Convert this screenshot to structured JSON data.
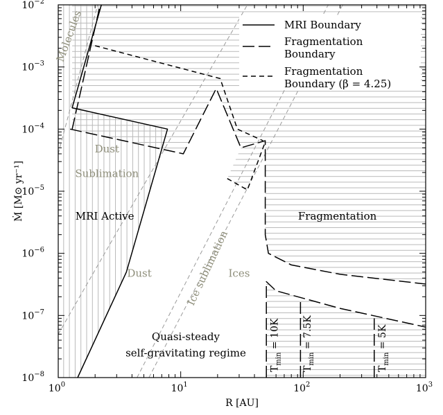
{
  "chart_data": {
    "type": "line",
    "xscale": "log",
    "yscale": "log",
    "xlim": [
      1,
      1000
    ],
    "ylim": [
      1e-08,
      0.01
    ],
    "xlabel": "R [AU]",
    "ylabel": "Ṁ [M⊙ yr⁻¹]",
    "x_ticks": [
      {
        "value": 1,
        "base": "10",
        "exp": "0"
      },
      {
        "value": 10,
        "base": "10",
        "exp": "1"
      },
      {
        "value": 100,
        "base": "10",
        "exp": "2"
      },
      {
        "value": 1000,
        "base": "10",
        "exp": "3"
      }
    ],
    "y_ticks": [
      {
        "value": 1e-08,
        "base": "10",
        "exp": "−8"
      },
      {
        "value": 1e-07,
        "base": "10",
        "exp": "−7"
      },
      {
        "value": 1e-06,
        "base": "10",
        "exp": "−6"
      },
      {
        "value": 1e-05,
        "base": "10",
        "exp": "−5"
      },
      {
        "value": 0.0001,
        "base": "10",
        "exp": "−4"
      },
      {
        "value": 0.001,
        "base": "10",
        "exp": "−3"
      },
      {
        "value": 0.01,
        "base": "10",
        "exp": "−2"
      }
    ],
    "legend": {
      "placement": "top-right",
      "entries": [
        {
          "label_lines": [
            "MRI Boundary"
          ],
          "style": "solid"
        },
        {
          "label_lines": [
            "Fragmentation",
            "Boundary"
          ],
          "style": "long-dash"
        },
        {
          "label_lines": [
            "Fragmentation",
            "Boundary (β = 4.25)"
          ],
          "style": "short-dash"
        }
      ]
    },
    "series": [
      {
        "name": "MRI Boundary",
        "style": "solid",
        "segments": [
          [
            [
              1.44,
              1e-08
            ],
            [
              3.6,
              5e-07
            ],
            [
              7.8,
              0.0001
            ],
            [
              1.3,
              0.00022
            ],
            [
              2.25,
              0.01
            ]
          ]
        ]
      },
      {
        "name": "Fragmentation Boundary",
        "style": "long-dash",
        "segments": [
          [
            [
              1.25,
              0.0001
            ],
            [
              10.5,
              4e-05
            ],
            [
              19.5,
              0.00045
            ],
            [
              31,
              5e-05
            ],
            [
              49,
              6.5e-05
            ],
            [
              49,
              2e-06
            ],
            [
              52,
              1e-06
            ],
            [
              80,
              6.5e-07
            ],
            [
              200,
              4.6e-07
            ],
            [
              1000,
              3.2e-07
            ]
          ],
          [
            [
              1.3,
              0.0001
            ],
            [
              2.2,
              0.01
            ]
          ],
          [
            [
              50,
              1e-08
            ],
            [
              50,
              3.5e-07
            ],
            [
              60,
              2.5e-07
            ],
            [
              200,
              1.3e-07
            ],
            [
              1000,
              6.5e-08
            ]
          ],
          [
            [
              95,
              1e-08
            ],
            [
              95,
              1.65e-07
            ]
          ],
          [
            [
              380,
              1e-08
            ],
            [
              380,
              9e-08
            ]
          ]
        ]
      },
      {
        "name": "Fragmentation Boundary (β = 4.25)",
        "style": "short-dash",
        "segments": [
          [
            [
              2.0,
              0.0022
            ],
            [
              21,
              0.00065
            ],
            [
              29,
              0.0001
            ],
            [
              47,
              6.5e-05
            ]
          ],
          [
            [
              24,
              1.6e-05
            ],
            [
              35,
              1.05e-05
            ],
            [
              49,
              6.2e-05
            ]
          ]
        ]
      }
    ],
    "guide_lines": {
      "style": "thin-dashed-gray",
      "lines": [
        [
          [
            1,
            4e-05
          ],
          [
            2.1,
            0.01
          ]
        ],
        [
          [
            1,
            5e-08
          ],
          [
            35,
            0.01
          ]
        ],
        [
          [
            4.4,
            1e-08
          ],
          [
            160,
            0.01
          ]
        ],
        [
          [
            5.5,
            1e-08
          ],
          [
            210,
            0.01
          ]
        ]
      ]
    },
    "shading": {
      "horizontal_hatch": [
        [
          [
            1.3,
            0.01
          ],
          [
            1000,
            0.01
          ],
          [
            1000,
            3.2e-07
          ],
          [
            200,
            4.6e-07
          ],
          [
            80,
            6.5e-07
          ],
          [
            52,
            1e-06
          ],
          [
            49,
            2e-06
          ],
          [
            49,
            6.5e-05
          ],
          [
            31,
            5e-05
          ],
          [
            19.5,
            0.00045
          ],
          [
            10.5,
            4e-05
          ],
          [
            1.3,
            0.0001
          ]
        ],
        [
          [
            50,
            1e-08
          ],
          [
            50,
            3.5e-07
          ],
          [
            60,
            2.5e-07
          ],
          [
            200,
            1.3e-07
          ],
          [
            1000,
            6.5e-08
          ],
          [
            1000,
            1e-08
          ]
        ],
        [
          [
            24,
            1.6e-05
          ],
          [
            35,
            1.05e-05
          ],
          [
            49,
            6.2e-05
          ],
          [
            31,
            5e-05
          ]
        ]
      ],
      "vertical_hatch": [
        [
          [
            1,
            1e-08
          ],
          [
            1.44,
            1e-08
          ],
          [
            3.6,
            5e-07
          ],
          [
            7.8,
            0.0001
          ],
          [
            1.3,
            0.00022
          ],
          [
            2.25,
            0.01
          ],
          [
            1,
            0.01
          ]
        ]
      ]
    },
    "annotations": {
      "molecules": {
        "text": "Molecules",
        "x": 1.3,
        "y": 0.003,
        "angle": -70
      },
      "dust_sublimation_1": {
        "text": "Dust",
        "x": 2.5,
        "y": 4.2e-05
      },
      "dust_sublimation_2": {
        "text": "Sublimation",
        "x": 2.5,
        "y": 1.7e-05
      },
      "mri_active": {
        "text": "MRI Active",
        "x": 2.4,
        "y": 3.5e-06
      },
      "dust": {
        "text": "Dust",
        "x": 4.6,
        "y": 4.2e-07
      },
      "ice_sublimation": {
        "text": "Ice sublimation",
        "x": 17.5,
        "y": 5.5e-07,
        "angle": -65
      },
      "ices": {
        "text": "Ices",
        "x": 30,
        "y": 4.2e-07
      },
      "fragmentation": {
        "text": "Fragmentation",
        "x": 190,
        "y": 3.5e-06
      },
      "quasi_steady_1": {
        "text": "Quasi-steady",
        "x": 11,
        "y": 4e-08
      },
      "quasi_steady_2": {
        "text": "self-gravitating regime",
        "x": 11,
        "y": 2.2e-08
      }
    },
    "tmin_labels": [
      {
        "x": 62,
        "label": "T",
        "sub": "min",
        "value": " = 10K"
      },
      {
        "x": 115,
        "label": "T",
        "sub": "min",
        "value": " = 7.5K"
      },
      {
        "x": 470,
        "label": "T",
        "sub": "min",
        "value": " = 5K"
      }
    ]
  }
}
